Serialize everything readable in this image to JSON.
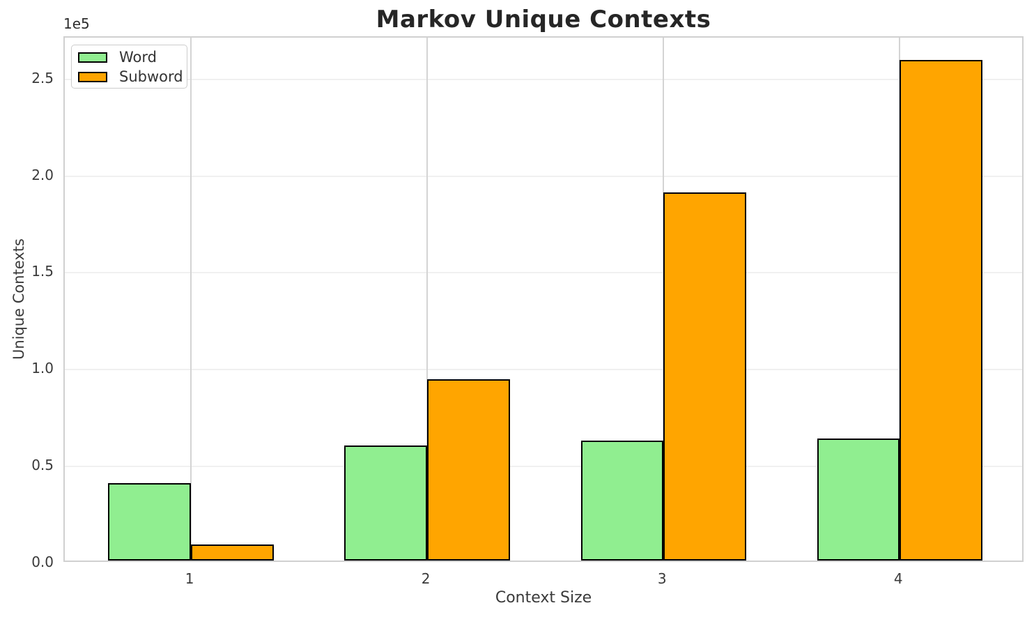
{
  "chart_data": {
    "type": "bar",
    "title": "Markov Unique Contexts",
    "xlabel": "Context Size",
    "ylabel": "Unique Contexts",
    "offset_text": "1e5",
    "categories": [
      "1",
      "2",
      "3",
      "4"
    ],
    "series": [
      {
        "name": "Word",
        "color": "#90EE90",
        "values": [
          40000,
          59500,
          62000,
          63000
        ]
      },
      {
        "name": "Subword",
        "color": "#FFA500",
        "values": [
          8200,
          93500,
          190000,
          258500
        ]
      }
    ],
    "bar_edge_color": "#000000",
    "ylim": [
      0,
      271500
    ],
    "yticks": [
      0,
      50000,
      100000,
      150000,
      200000,
      250000
    ],
    "ytick_labels": [
      "0.0",
      "0.5",
      "1.0",
      "1.5",
      "2.0",
      "2.5"
    ],
    "grid": true,
    "legend_position": "upper left"
  },
  "colors": {
    "background": "#ffffff",
    "spine": "#d0d0d0",
    "hgrid": "#f0f0f0",
    "vgrid": "#d4d4d4",
    "title_text": "#262626",
    "tick_text": "#3a3a3a"
  }
}
